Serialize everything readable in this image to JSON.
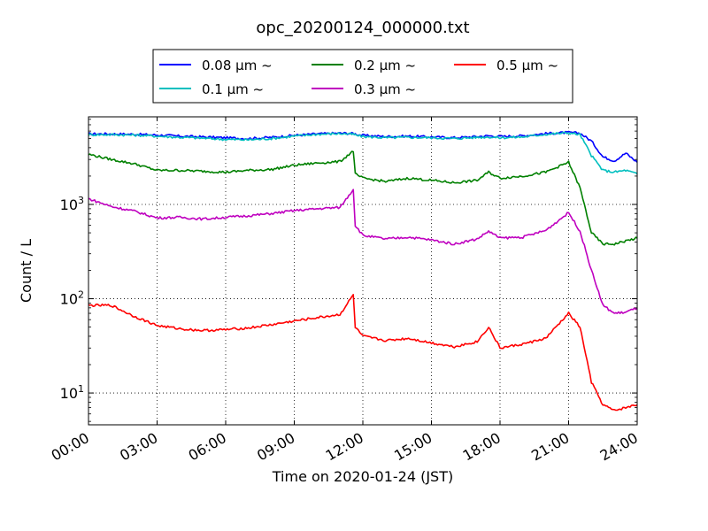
{
  "chart_data": {
    "type": "line",
    "title": "opc_20200124_000000.txt",
    "xlabel": "Time on 2020-01-24 (JST)",
    "ylabel": "Count / L",
    "yscale": "log",
    "ylim": [
      4.6,
      8500
    ],
    "xlim": [
      "2020-01-24 00:00",
      "2020-01-25 00:00"
    ],
    "x_ticks": [
      "00:00",
      "03:00",
      "06:00",
      "09:00",
      "12:00",
      "15:00",
      "18:00",
      "21:00",
      "24:00"
    ],
    "y_ticks": [
      {
        "value": 10,
        "mantissa": "10",
        "exp": "1"
      },
      {
        "value": 100,
        "mantissa": "10",
        "exp": "2"
      },
      {
        "value": 1000,
        "mantissa": "10",
        "exp": "3"
      }
    ],
    "grid": true,
    "legend_placement": "top-center, above plot",
    "x_times": [
      "00:00",
      "01:00",
      "02:00",
      "03:00",
      "04:00",
      "05:00",
      "06:00",
      "07:00",
      "08:00",
      "09:00",
      "10:00",
      "11:00",
      "11:35",
      "11:40",
      "12:00",
      "13:00",
      "14:00",
      "15:00",
      "16:00",
      "17:00",
      "17:30",
      "18:00",
      "19:00",
      "20:00",
      "21:00",
      "21:30",
      "22:00",
      "22:30",
      "23:00",
      "23:30",
      "24:00"
    ],
    "series": [
      {
        "name": "0.08 µm ~",
        "color": "#0000ff",
        "values": [
          5600,
          5600,
          5550,
          5450,
          5300,
          5200,
          5100,
          5000,
          5150,
          5400,
          5600,
          5700,
          5650,
          5600,
          5400,
          5250,
          5300,
          5200,
          5100,
          5250,
          5350,
          5250,
          5350,
          5650,
          5800,
          5700,
          4700,
          3200,
          2900,
          3500,
          2800
        ]
      },
      {
        "name": "0.1 µm ~",
        "color": "#00bfbf",
        "values": [
          5500,
          5500,
          5450,
          5300,
          5150,
          5050,
          4900,
          4850,
          5000,
          5300,
          5550,
          5650,
          5550,
          5450,
          5250,
          5100,
          5150,
          5100,
          5000,
          5150,
          5200,
          5100,
          5200,
          5550,
          5750,
          5500,
          3300,
          2300,
          2200,
          2300,
          2100
        ]
      },
      {
        "name": "0.2 µm ~",
        "color": "#008000",
        "values": [
          3400,
          3000,
          2700,
          2300,
          2300,
          2250,
          2200,
          2300,
          2350,
          2600,
          2750,
          2850,
          3700,
          2100,
          1900,
          1750,
          1900,
          1800,
          1700,
          1800,
          2200,
          1900,
          2000,
          2200,
          2800,
          1500,
          500,
          380,
          380,
          410,
          440
        ]
      },
      {
        "name": "0.3 µm ~",
        "color": "#bf00bf",
        "values": [
          1150,
          950,
          850,
          720,
          730,
          700,
          730,
          760,
          800,
          860,
          900,
          930,
          1450,
          600,
          470,
          430,
          450,
          420,
          380,
          430,
          520,
          440,
          450,
          530,
          820,
          520,
          200,
          85,
          70,
          72,
          80
        ]
      },
      {
        "name": "0.5 µm ~",
        "color": "#ff0000",
        "values": [
          85,
          85,
          65,
          52,
          48,
          46,
          47,
          49,
          53,
          58,
          63,
          68,
          110,
          50,
          40,
          36,
          38,
          34,
          31,
          35,
          50,
          30,
          33,
          38,
          70,
          50,
          13,
          7.5,
          6.5,
          7,
          7.5
        ]
      }
    ]
  }
}
